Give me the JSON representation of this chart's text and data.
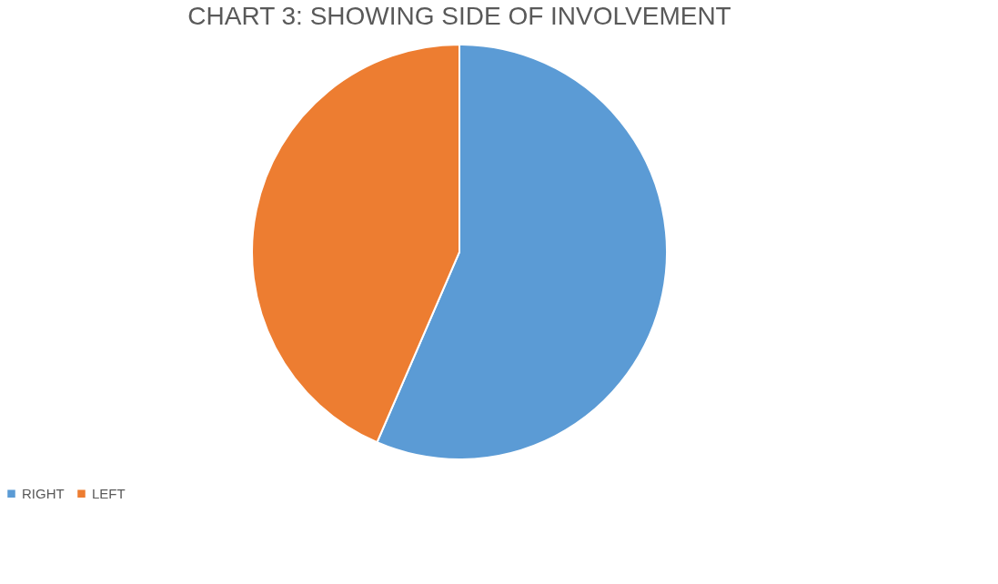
{
  "chart_data": {
    "type": "pie",
    "title": "CHART 3: SHOWING SIDE OF INVOLVEMENT",
    "categories": [
      "RIGHT",
      "LEFT"
    ],
    "values": [
      56.5,
      43.5
    ],
    "colors": [
      "#5b9bd5",
      "#ed7d31"
    ],
    "legend": "bottom"
  }
}
